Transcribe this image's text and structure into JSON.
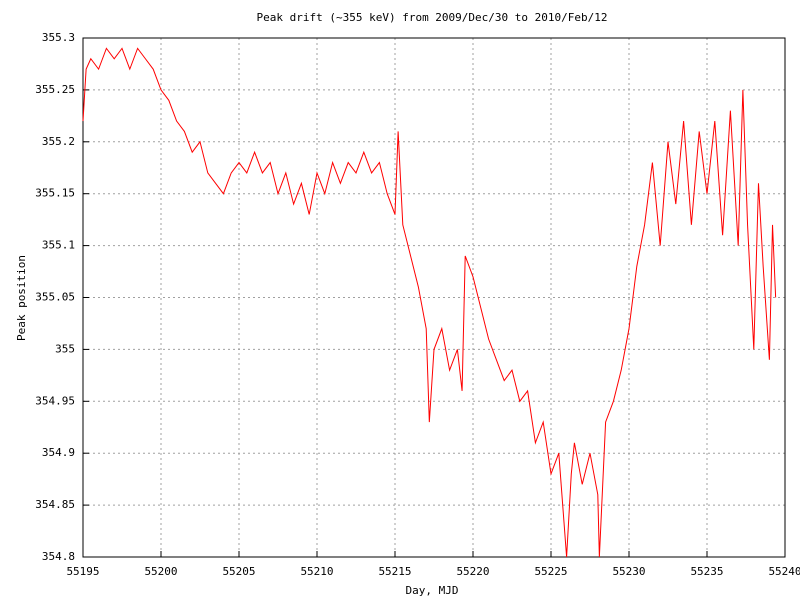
{
  "chart_data": {
    "type": "line",
    "title": "Peak drift (~355 keV) from 2009/Dec/30 to 2010/Feb/12",
    "x_label": "Day, MJD",
    "y_label": "Peak position",
    "xlim": [
      55195,
      55240
    ],
    "xticks": [
      55195,
      55200,
      55205,
      55210,
      55215,
      55220,
      55225,
      55230,
      55235,
      55240
    ],
    "ylim": [
      354.8,
      355.3
    ],
    "yticks": [
      354.8,
      354.85,
      354.9,
      354.95,
      355,
      355.05,
      355.1,
      355.15,
      355.2,
      355.25,
      355.3
    ],
    "grid": true,
    "series": [
      {
        "color": "#ff0000",
        "x": [
          55195.0,
          55195.2,
          55195.5,
          55196,
          55196.5,
          55197,
          55197.5,
          55198,
          55198.5,
          55199,
          55199.5,
          55200,
          55200.5,
          55201,
          55201.5,
          55202,
          55202.5,
          55203,
          55203.5,
          55204,
          55204.5,
          55205,
          55205.5,
          55206,
          55206.5,
          55207,
          55207.5,
          55208,
          55208.5,
          55209,
          55209.5,
          55210,
          55210.5,
          55211,
          55211.5,
          55212,
          55212.5,
          55213,
          55213.5,
          55214,
          55214.5,
          55215,
          55215.2,
          55215.5,
          55216,
          55216.5,
          55217,
          55217.2,
          55217.5,
          55218,
          55218.5,
          55219,
          55219.3,
          55219.5,
          55220,
          55220.5,
          55221,
          55221.5,
          55222,
          55222.5,
          55223,
          55223.5,
          55224,
          55224.5,
          55225,
          55225.5,
          55226,
          55226.3,
          55226.5,
          55227,
          55227.5,
          55228,
          55228.1,
          55228.5,
          55229,
          55229.5,
          55230,
          55230.5,
          55231,
          55231.5,
          55232,
          55232.5,
          55233,
          55233.5,
          55234,
          55234.5,
          55235,
          55235.5,
          55236,
          55236.5,
          55237,
          55237.3,
          55237.6,
          55238,
          55238.3,
          55238.6,
          55239,
          55239.2,
          55239.4
        ],
        "values": [
          355.22,
          355.27,
          355.28,
          355.27,
          355.29,
          355.28,
          355.29,
          355.27,
          355.29,
          355.28,
          355.27,
          355.25,
          355.24,
          355.22,
          355.21,
          355.19,
          355.2,
          355.17,
          355.16,
          355.15,
          355.17,
          355.18,
          355.17,
          355.19,
          355.17,
          355.18,
          355.15,
          355.17,
          355.14,
          355.16,
          355.13,
          355.17,
          355.15,
          355.18,
          355.16,
          355.18,
          355.17,
          355.19,
          355.17,
          355.18,
          355.15,
          355.13,
          355.21,
          355.12,
          355.09,
          355.06,
          355.02,
          354.93,
          355.0,
          355.02,
          354.98,
          355.0,
          354.96,
          355.09,
          355.07,
          355.04,
          355.01,
          354.99,
          354.97,
          354.98,
          354.95,
          354.96,
          354.91,
          354.93,
          354.88,
          354.9,
          354.8,
          354.88,
          354.91,
          354.87,
          354.9,
          354.86,
          354.8,
          354.93,
          354.95,
          354.98,
          355.02,
          355.08,
          355.12,
          355.18,
          355.1,
          355.2,
          355.14,
          355.22,
          355.12,
          355.21,
          355.15,
          355.22,
          355.11,
          355.23,
          355.1,
          355.25,
          355.12,
          355.0,
          355.16,
          355.08,
          354.99,
          355.12,
          355.05
        ]
      }
    ]
  }
}
